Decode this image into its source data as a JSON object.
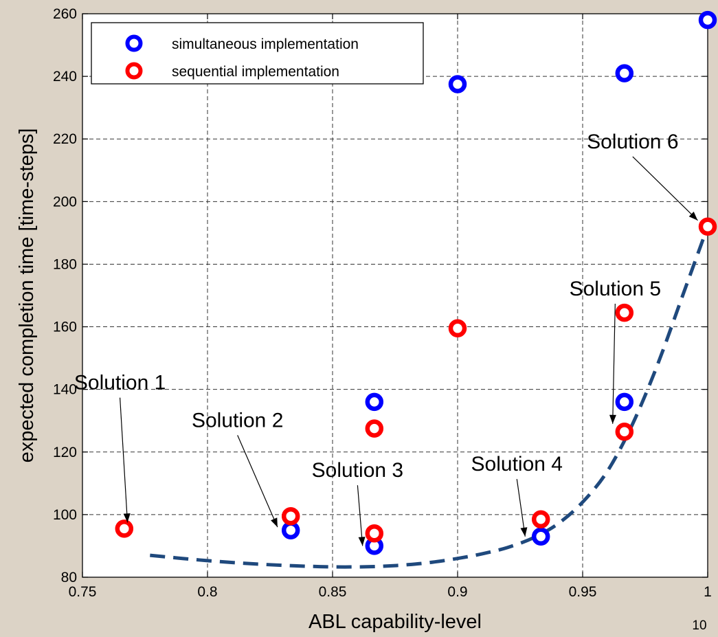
{
  "chart_data": {
    "type": "scatter",
    "title": "",
    "xlabel": "ABL capability-level",
    "ylabel": "expected completion time [time-steps]",
    "xlim": [
      0.75,
      1.0
    ],
    "ylim": [
      80,
      260
    ],
    "xticks": [
      0.75,
      0.8,
      0.85,
      0.9,
      0.95,
      1.0
    ],
    "xtick_labels": [
      "0.75",
      "0.8",
      "0.85",
      "0.9",
      "0.95",
      "1"
    ],
    "yticks": [
      80,
      100,
      120,
      140,
      160,
      180,
      200,
      220,
      240,
      260
    ],
    "ytick_labels": [
      "80",
      "100",
      "120",
      "140",
      "160",
      "180",
      "200",
      "220",
      "240",
      "260"
    ],
    "grid": true,
    "legend_placement": "top-left",
    "series": [
      {
        "name": "simultaneous implementation",
        "color": "#0000FF",
        "x": [
          0.8333,
          0.8667,
          0.8667,
          0.9,
          0.9333,
          0.9667,
          0.9667,
          1.0
        ],
        "y": [
          95,
          90,
          136,
          237.5,
          93,
          136,
          241,
          258
        ]
      },
      {
        "name": "sequential implementation",
        "color": "#FF0000",
        "x": [
          0.7667,
          0.8333,
          0.8667,
          0.8667,
          0.9,
          0.9333,
          0.9667,
          0.9667,
          1.0
        ],
        "y": [
          95.5,
          99.5,
          94,
          127.5,
          159.5,
          98.5,
          126.5,
          164.5,
          192
        ]
      }
    ],
    "frontier": {
      "color": "#1F497D",
      "x": [
        0.777,
        0.79,
        0.8,
        0.81,
        0.82,
        0.83,
        0.84,
        0.85,
        0.86,
        0.87,
        0.88,
        0.89,
        0.9,
        0.91,
        0.92,
        0.93,
        0.94,
        0.95,
        0.96,
        0.97,
        0.98,
        0.99,
        1.0
      ],
      "y": [
        87,
        86,
        85.3,
        84.7,
        84.2,
        83.8,
        83.5,
        83.3,
        83.3,
        83.5,
        84,
        84.8,
        86,
        87.5,
        89.5,
        92.5,
        97,
        104,
        114,
        129,
        148,
        170,
        192
      ]
    },
    "annotations": [
      {
        "text": "Solution 1",
        "tx": 0.765,
        "ty": 140,
        "ax": 0.768,
        "ay": 97.5
      },
      {
        "text": "Solution 2",
        "tx": 0.812,
        "ty": 128,
        "ax": 0.828,
        "ay": 96
      },
      {
        "text": "Solution 3",
        "tx": 0.86,
        "ty": 112,
        "ax": 0.862,
        "ay": 90
      },
      {
        "text": "Solution 4",
        "tx": 0.9237,
        "ty": 114,
        "ax": 0.927,
        "ay": 93
      },
      {
        "text": "Solution 5",
        "tx": 0.963,
        "ty": 170,
        "ax": 0.962,
        "ay": 129
      },
      {
        "text": "Solution 6",
        "tx": 0.97,
        "ty": 217,
        "ax": 0.996,
        "ay": 194
      }
    ],
    "page_number": "10"
  }
}
